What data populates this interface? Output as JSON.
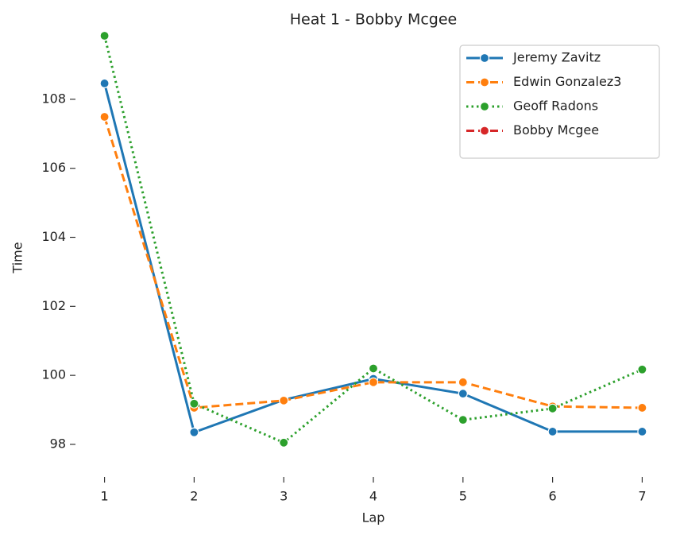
{
  "chart_data": {
    "type": "line",
    "title": "Heat 1 - Bobby Mcgee",
    "xlabel": "Lap",
    "ylabel": "Time",
    "x": [
      1,
      2,
      3,
      4,
      5,
      6,
      7
    ],
    "series": [
      {
        "name": "Jeremy Zavitz",
        "color": "#1f77b4",
        "linestyle": "solid",
        "values": [
          108.46,
          98.35,
          99.29,
          99.9,
          99.47,
          98.37,
          98.37
        ]
      },
      {
        "name": "Edwin Gonzalez3",
        "color": "#ff7f0e",
        "linestyle": "dashed",
        "values": [
          107.49,
          99.06,
          99.27,
          99.8,
          99.8,
          99.1,
          99.06
        ]
      },
      {
        "name": "Geoff Radons",
        "color": "#2ca02c",
        "linestyle": "dotted",
        "values": [
          109.84,
          99.18,
          98.05,
          100.2,
          98.71,
          99.04,
          100.17
        ]
      },
      {
        "name": "Bobby Mcgee",
        "color": "#d62728",
        "linestyle": "dashed",
        "values": [
          null,
          null,
          null,
          null,
          null,
          null,
          null
        ]
      }
    ],
    "xlim": [
      0.72,
      7.28
    ],
    "xticks": [
      1,
      2,
      3,
      4,
      5,
      6,
      7
    ],
    "ylim": [
      97.17,
      109.84
    ],
    "yticks": [
      98,
      100,
      102,
      104,
      106,
      108
    ],
    "legend": "upper right"
  }
}
